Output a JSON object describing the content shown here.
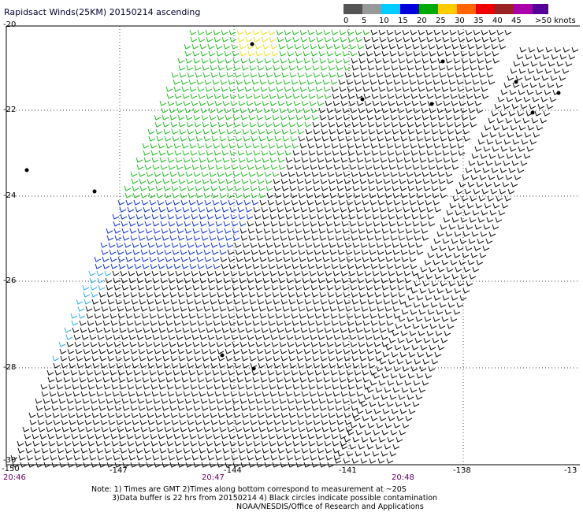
{
  "title": "Rapidsact Winds(25KM) 20150214 ascending",
  "legend": {
    "labels": [
      "0",
      "5",
      "10",
      "15",
      "20",
      "25",
      "30",
      "35",
      "40",
      "45",
      ">50 knots"
    ],
    "colors": [
      "#555555",
      "#999999",
      "#00ccff",
      "#0000dd",
      "#00aa00",
      "#ffcc00",
      "#ff6600",
      "#ee0000",
      "#992222",
      "#aa00aa",
      "#550099"
    ]
  },
  "lat_labels": [
    "-20",
    "-22",
    "-24",
    "-26",
    "-28",
    "-30"
  ],
  "lon_labels": [
    "-150",
    "-147",
    "-144",
    "-141",
    "-138",
    "-13"
  ],
  "time_labels": [
    "20:46",
    "20:47",
    "20:48"
  ],
  "notes": {
    "line1": "Note: 1) Times are GMT 2)Times along bottom correspond to measurement at ~20S",
    "line2": "3)Data buffer is 22 hrs from 20150214 4) Black circles indicate possible contamination",
    "credit": "NOAA/NESDIS/Office of Research and Applications"
  }
}
